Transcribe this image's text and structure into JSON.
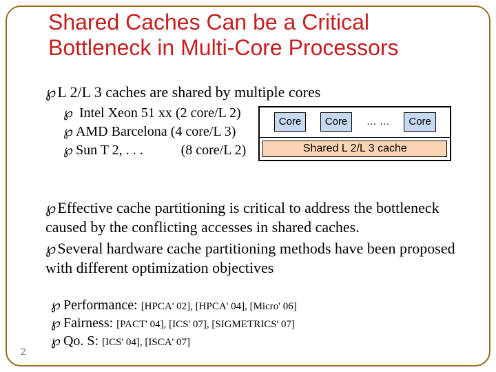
{
  "title": "Shared Caches Can be a Critical Bottleneck in Multi-Core Processors",
  "title_color": "#c41f1f",
  "flourish_glyph": "་",
  "bullet1": "L 2/L 3 caches are shared by multiple cores",
  "cpu_examples": [
    {
      "name": "Intel Xeon 51 xx",
      "caps": "(2 core/L 2)"
    },
    {
      "name": "AMD Barcelona",
      "caps": "(4 core/L 3)"
    },
    {
      "name": "Sun T 2, . . .",
      "caps": "(8 core/L 2)"
    }
  ],
  "diagram": {
    "core_label": "Core",
    "core_bg": "#c6d9f0",
    "dots": "… …",
    "shared_label": "Shared L 2/L 3 cache",
    "shared_bg": "#fcd5b4"
  },
  "bullet2": "Effective cache partitioning is critical to address the bottleneck caused by the conflicting accesses in shared caches.",
  "bullet3": "Several hardware cache partitioning methods have been proposed with different optimization objectives",
  "refs": [
    {
      "label": "Performance:",
      "cites": "[HPCA' 02], [HPCA' 04], [Micro' 06]"
    },
    {
      "label": "Fairness:",
      "cites": "[PACT' 04], [ICS' 07], [SIGMETRICS' 07]"
    },
    {
      "label": "Qo. S:",
      "cites": "[ICS' 04], [ISCA' 07]"
    }
  ],
  "page_number": "2",
  "colors": {
    "border": "#9a6b1f",
    "text": "#000000",
    "pagenum": "#7a7a7a"
  },
  "fonts": {
    "title": {
      "family": "Arial",
      "size_pt": 24
    },
    "body": {
      "family": "Times New Roman",
      "size_pt": 17
    }
  }
}
